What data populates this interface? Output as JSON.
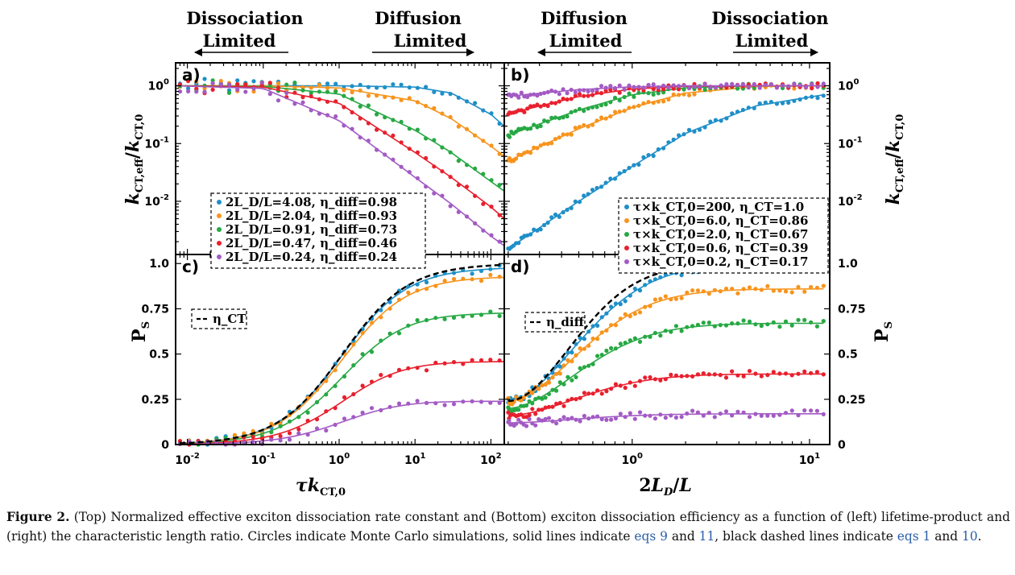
{
  "figure_headers": {
    "a_left": [
      "Dissociation",
      "Limited"
    ],
    "a_right": [
      "Diffusion",
      "Limited"
    ],
    "b_left": [
      "Diffusion",
      "Limited"
    ],
    "b_right": [
      "Dissociation",
      "Limited"
    ]
  },
  "caption": {
    "label": "Figure 2.",
    "text1": " (Top) Normalized effective exciton dissociation rate constant and (Bottom) exciton dissociation efficiency as a function of (left) lifetime-product and (right) the characteristic length ratio. Circles indicate Monte Carlo simulations, solid lines indicate ",
    "ref1": "eqs 9",
    "text2": " and ",
    "ref2": "11",
    "text3": ", black dashed lines indicate ",
    "ref3": "eqs 1",
    "text4": " and ",
    "ref4": "10",
    "text5": "."
  },
  "colors": {
    "series": [
      "#1f8fc8",
      "#f7941d",
      "#27a844",
      "#e8202e",
      "#a35bc4"
    ],
    "dashed": "#000000"
  },
  "chart_data": [
    {
      "panel": "a",
      "type": "scatter",
      "scale": "log-log",
      "xlabel": "τk_CT,0",
      "ylabel": "k_CT,eff/k_CT,0",
      "xlim": [
        0.007,
        150
      ],
      "ylim": [
        0.0012,
        2.5
      ],
      "x_ticks": [
        "10^-2",
        "10^-1",
        "10^0",
        "10^1",
        "10^2"
      ],
      "y_ticks": [
        "10^-2",
        "10^-1",
        "10^0"
      ],
      "legend": [
        "2L_D/L=4.08, η_diff=0.98",
        "2L_D/L=2.04, η_diff=0.93",
        "2L_D/L=0.91, η_diff=0.73",
        "2L_D/L=0.47, η_diff=0.46",
        "2L_D/L=0.24, η_diff=0.24"
      ],
      "series": [
        {
          "line": {
            "x": [
              0.007,
              0.1,
              1,
              10,
              30,
              100,
              150
            ],
            "y": [
              1,
              1,
              1,
              0.95,
              0.75,
              0.32,
              0.2
            ]
          }
        },
        {
          "line": {
            "x": [
              0.007,
              0.1,
              1,
              10,
              30,
              100,
              150
            ],
            "y": [
              1,
              1,
              0.92,
              0.55,
              0.27,
              0.09,
              0.06
            ]
          }
        },
        {
          "line": {
            "x": [
              0.007,
              0.1,
              1,
              10,
              30,
              100,
              150
            ],
            "y": [
              1,
              0.98,
              0.72,
              0.17,
              0.07,
              0.022,
              0.015
            ]
          }
        },
        {
          "line": {
            "x": [
              0.007,
              0.1,
              1,
              10,
              30,
              100,
              150
            ],
            "y": [
              1,
              0.95,
              0.5,
              0.07,
              0.026,
              0.008,
              0.005
            ]
          }
        },
        {
          "line": {
            "x": [
              0.007,
              0.1,
              1,
              10,
              30,
              100,
              150
            ],
            "y": [
              1,
              0.9,
              0.25,
              0.026,
              0.009,
              0.0025,
              0.0017
            ]
          }
        }
      ]
    },
    {
      "panel": "b",
      "type": "scatter",
      "scale": "log-log",
      "xlabel": "2L_D/L",
      "ylabel": "k_CT,eff/k_CT,0",
      "xlim": [
        0.19,
        13
      ],
      "ylim": [
        0.0012,
        2.5
      ],
      "x_ticks": [
        "10^0",
        "10^1"
      ],
      "y_ticks": [
        "10^-2",
        "10^-1",
        "10^0"
      ],
      "legend": [
        "τ×k_CT,0=200, η_CT=1.0",
        "τ×k_CT,0=6.0, η_CT=0.86",
        "τ×k_CT,0=2.0, η_CT=0.67",
        "τ×k_CT,0=0.6, η_CT=0.39",
        "τ×k_CT,0=0.2, η_CT=0.17"
      ],
      "series": [
        {
          "line": {
            "x": [
              0.2,
              0.5,
              1,
              2,
              5,
              12
            ],
            "y": [
              0.0015,
              0.01,
              0.04,
              0.15,
              0.45,
              0.7
            ]
          }
        },
        {
          "line": {
            "x": [
              0.2,
              0.5,
              1,
              2,
              5,
              12
            ],
            "y": [
              0.05,
              0.18,
              0.42,
              0.75,
              0.97,
              1
            ]
          }
        },
        {
          "line": {
            "x": [
              0.2,
              0.5,
              1,
              2,
              5,
              12
            ],
            "y": [
              0.14,
              0.38,
              0.7,
              0.92,
              1,
              1
            ]
          }
        },
        {
          "line": {
            "x": [
              0.2,
              0.5,
              1,
              2,
              5,
              12
            ],
            "y": [
              0.33,
              0.65,
              0.88,
              0.98,
              1,
              1
            ]
          }
        },
        {
          "line": {
            "x": [
              0.2,
              0.5,
              1,
              2,
              5,
              12
            ],
            "y": [
              0.66,
              0.86,
              0.96,
              1,
              1,
              1
            ]
          }
        }
      ]
    },
    {
      "panel": "c",
      "type": "scatter",
      "scale": "log-x",
      "xlabel": "τk_CT,0",
      "ylabel": "P_S",
      "xlim": [
        0.007,
        150
      ],
      "ylim": [
        0,
        1.05
      ],
      "x_ticks": [
        "10^-2",
        "10^-1",
        "10^0",
        "10^1",
        "10^2"
      ],
      "y_ticks": [
        "0",
        "0.25",
        "0.5",
        "0.75",
        "1.0"
      ],
      "legend": [
        "η_CT"
      ],
      "series": [
        {
          "plateau": 0.98
        },
        {
          "plateau": 0.93
        },
        {
          "plateau": 0.73
        },
        {
          "plateau": 0.46
        },
        {
          "plateau": 0.24
        }
      ]
    },
    {
      "panel": "d",
      "type": "scatter",
      "scale": "log-x",
      "xlabel": "2L_D/L",
      "ylabel": "P_S",
      "xlim": [
        0.19,
        13
      ],
      "ylim": [
        0,
        1.05
      ],
      "x_ticks": [
        "10^0",
        "10^1"
      ],
      "y_ticks": [
        "0",
        "0.25",
        "0.5",
        "0.75",
        "1.0"
      ],
      "legend": [
        "η_diff"
      ],
      "series": [
        {
          "plateau": 1.0,
          "start": 0.24
        },
        {
          "plateau": 0.86,
          "start": 0.24
        },
        {
          "plateau": 0.67,
          "start": 0.2
        },
        {
          "plateau": 0.39,
          "start": 0.16
        },
        {
          "plateau": 0.17,
          "start": 0.12
        }
      ]
    }
  ]
}
